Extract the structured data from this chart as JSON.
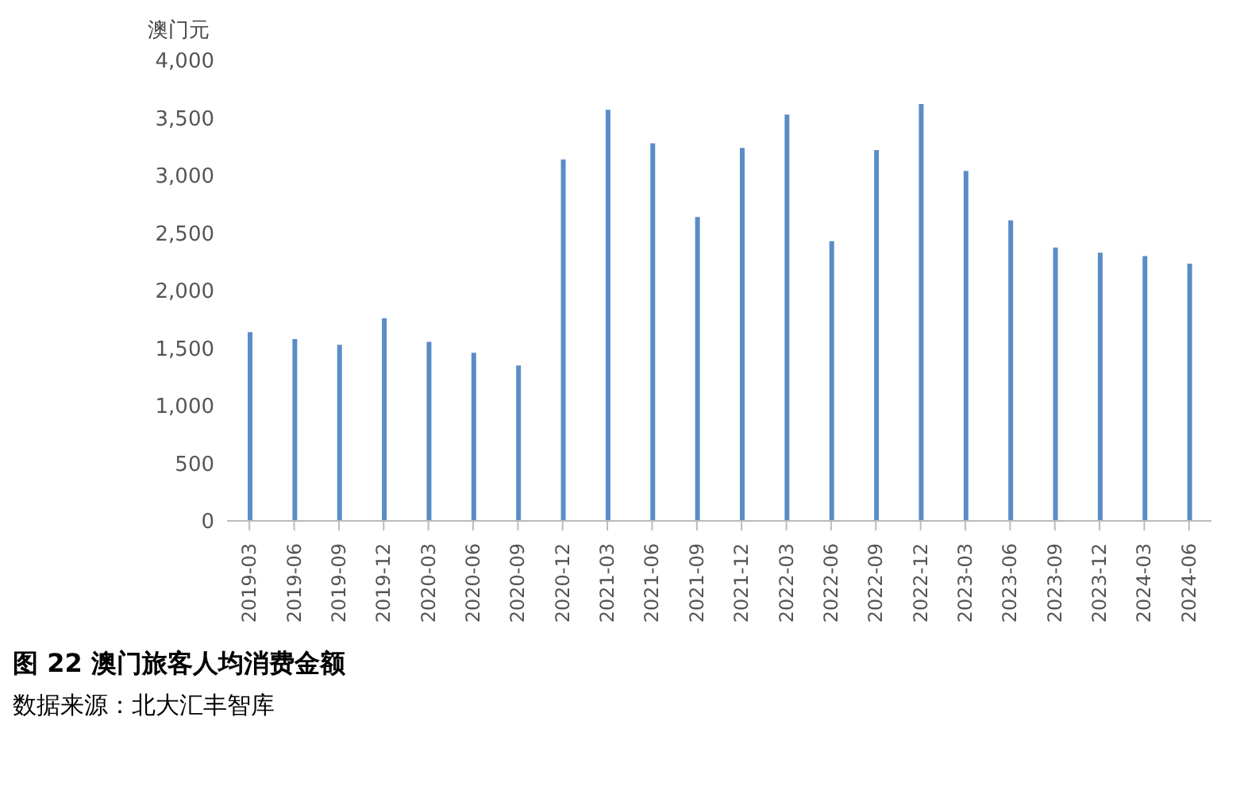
{
  "chart_data": {
    "type": "bar",
    "title": "图 22  澳门旅客人均消费金额",
    "ylabel": "澳门元",
    "categories": [
      "2019-03",
      "2019-06",
      "2019-09",
      "2019-12",
      "2020-03",
      "2020-06",
      "2020-09",
      "2020-12",
      "2021-03",
      "2021-06",
      "2021-09",
      "2021-12",
      "2022-03",
      "2022-06",
      "2022-09",
      "2022-12",
      "2023-03",
      "2023-06",
      "2023-09",
      "2023-12",
      "2024-03",
      "2024-06"
    ],
    "values": [
      1640,
      1580,
      1530,
      1760,
      1555,
      1460,
      1350,
      3140,
      3570,
      3280,
      2640,
      3240,
      3530,
      2430,
      3220,
      3620,
      3040,
      2610,
      2375,
      2330,
      2300,
      2235
    ],
    "color": "#5b8cc6",
    "ylim": [
      0,
      4000
    ],
    "yticks": [
      {
        "value": 0,
        "label": "0"
      },
      {
        "value": 500,
        "label": "500"
      },
      {
        "value": 1000,
        "label": "1,000"
      },
      {
        "value": 1500,
        "label": "1,500"
      },
      {
        "value": 2000,
        "label": "2,000"
      },
      {
        "value": 2500,
        "label": "2,500"
      },
      {
        "value": 3000,
        "label": "3,000"
      },
      {
        "value": 3500,
        "label": "3,500"
      },
      {
        "value": 4000,
        "label": "4,000"
      }
    ],
    "annotations": [
      "数据来源：北大汇丰智库"
    ]
  }
}
